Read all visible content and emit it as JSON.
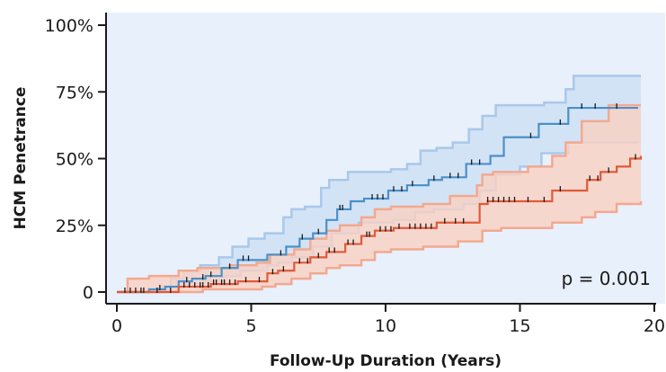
{
  "chart_data": {
    "type": "line",
    "xlabel": "Follow-Up Duration (Years)",
    "ylabel": "HCM Penetrance",
    "xlim": [
      0,
      20
    ],
    "ylim": [
      0,
      100
    ],
    "x_ticks": [
      0,
      5,
      10,
      15,
      20
    ],
    "x_tick_labels": [
      "0",
      "5",
      "10",
      "15",
      "20"
    ],
    "y_ticks": [
      0,
      25,
      50,
      75,
      100
    ],
    "y_tick_labels": [
      "0",
      "25%",
      "50%",
      "75%",
      "100%"
    ],
    "annotation": "p = 0.001",
    "background_color": "#e8f0fb",
    "series": [
      {
        "color": "#4a90c8",
        "band_fill": "#cfe0f5",
        "band_stroke": "#a9c8ea",
        "estimate": [
          [
            0,
            0
          ],
          [
            0.6,
            0
          ],
          [
            1.2,
            1
          ],
          [
            1.8,
            2
          ],
          [
            2.3,
            4
          ],
          [
            2.8,
            5
          ],
          [
            3.3,
            6
          ],
          [
            3.9,
            9
          ],
          [
            4.5,
            12
          ],
          [
            5.6,
            14
          ],
          [
            6.3,
            17
          ],
          [
            6.8,
            20
          ],
          [
            7.3,
            22
          ],
          [
            7.8,
            27
          ],
          [
            8.2,
            31
          ],
          [
            8.7,
            34
          ],
          [
            9.2,
            35
          ],
          [
            10.1,
            38
          ],
          [
            10.8,
            40
          ],
          [
            11.6,
            42
          ],
          [
            12.1,
            43
          ],
          [
            13.0,
            48
          ],
          [
            13.9,
            51
          ],
          [
            14.4,
            58
          ],
          [
            15.7,
            63
          ],
          [
            16.8,
            69
          ],
          [
            19.4,
            69
          ]
        ],
        "upper": [
          [
            0,
            0
          ],
          [
            1.0,
            0
          ],
          [
            1.6,
            2
          ],
          [
            2.0,
            5
          ],
          [
            2.5,
            8
          ],
          [
            3.1,
            10
          ],
          [
            3.8,
            13
          ],
          [
            4.3,
            17
          ],
          [
            4.9,
            20
          ],
          [
            5.5,
            22
          ],
          [
            6.2,
            28
          ],
          [
            6.5,
            31
          ],
          [
            7.0,
            32
          ],
          [
            7.6,
            39
          ],
          [
            7.9,
            42
          ],
          [
            8.6,
            45
          ],
          [
            10.2,
            46
          ],
          [
            10.8,
            48
          ],
          [
            11.3,
            53
          ],
          [
            11.9,
            54
          ],
          [
            12.5,
            56
          ],
          [
            13.1,
            61
          ],
          [
            13.6,
            66
          ],
          [
            14.1,
            70
          ],
          [
            15.9,
            71
          ],
          [
            16.7,
            76
          ],
          [
            17.0,
            81
          ],
          [
            19.5,
            81
          ]
        ],
        "lower": [
          [
            0,
            0
          ],
          [
            0.8,
            0
          ],
          [
            1.6,
            1
          ],
          [
            2.0,
            2
          ],
          [
            2.6,
            3
          ],
          [
            3.2,
            4
          ],
          [
            4.0,
            6
          ],
          [
            4.6,
            8
          ],
          [
            5.6,
            10
          ],
          [
            6.0,
            11
          ],
          [
            6.5,
            13
          ],
          [
            7.3,
            17
          ],
          [
            8.0,
            22
          ],
          [
            9.0,
            26
          ],
          [
            10.3,
            27
          ],
          [
            11.1,
            30
          ],
          [
            11.8,
            31
          ],
          [
            12.9,
            33
          ],
          [
            13.5,
            38
          ],
          [
            14.1,
            44
          ],
          [
            15.0,
            47
          ],
          [
            15.8,
            52
          ],
          [
            16.8,
            56
          ],
          [
            19.4,
            56
          ]
        ]
      },
      {
        "color": "#e05a3a",
        "band_fill": "#f9d1c3",
        "band_stroke": "#f2a98f",
        "estimate": [
          [
            0,
            0
          ],
          [
            0.3,
            0
          ],
          [
            1.3,
            0
          ],
          [
            2.3,
            2
          ],
          [
            3.5,
            3
          ],
          [
            4.5,
            4
          ],
          [
            5.6,
            7
          ],
          [
            6.0,
            8
          ],
          [
            6.6,
            11
          ],
          [
            7.2,
            13
          ],
          [
            7.8,
            15
          ],
          [
            8.5,
            18
          ],
          [
            9.1,
            21
          ],
          [
            9.6,
            23
          ],
          [
            10.3,
            24
          ],
          [
            11.9,
            26
          ],
          [
            13.5,
            33
          ],
          [
            13.8,
            34
          ],
          [
            16.2,
            38
          ],
          [
            17.5,
            42
          ],
          [
            18.0,
            45
          ],
          [
            18.6,
            47
          ],
          [
            19.1,
            50
          ],
          [
            19.5,
            51
          ]
        ],
        "upper": [
          [
            0,
            0
          ],
          [
            0.4,
            5
          ],
          [
            1.2,
            6
          ],
          [
            2.3,
            8
          ],
          [
            3.0,
            9
          ],
          [
            4.2,
            10
          ],
          [
            5.2,
            11
          ],
          [
            5.7,
            14
          ],
          [
            6.6,
            16
          ],
          [
            7.2,
            20
          ],
          [
            7.8,
            23
          ],
          [
            8.3,
            25
          ],
          [
            9.1,
            28
          ],
          [
            9.6,
            31
          ],
          [
            10.2,
            32
          ],
          [
            11.4,
            33
          ],
          [
            12.4,
            36
          ],
          [
            13.4,
            40
          ],
          [
            13.6,
            44
          ],
          [
            14.0,
            45
          ],
          [
            15.3,
            47
          ],
          [
            16.2,
            51
          ],
          [
            16.7,
            56
          ],
          [
            17.3,
            64
          ],
          [
            18.3,
            70
          ],
          [
            19.5,
            70
          ]
        ],
        "lower": [
          [
            0,
            0
          ],
          [
            1.3,
            0
          ],
          [
            2.3,
            0
          ],
          [
            3.2,
            1
          ],
          [
            4.5,
            1
          ],
          [
            5.4,
            2
          ],
          [
            5.9,
            3
          ],
          [
            6.5,
            5
          ],
          [
            7.2,
            7
          ],
          [
            7.8,
            9
          ],
          [
            8.3,
            10
          ],
          [
            9.1,
            12
          ],
          [
            9.6,
            15
          ],
          [
            10.2,
            16
          ],
          [
            11.4,
            17
          ],
          [
            12.7,
            19
          ],
          [
            13.6,
            23
          ],
          [
            14.3,
            24
          ],
          [
            16.2,
            26
          ],
          [
            17.3,
            28
          ],
          [
            17.8,
            30
          ],
          [
            18.6,
            33
          ],
          [
            19.5,
            34
          ]
        ]
      }
    ],
    "censor_marks": [
      [
        0.3,
        0
      ],
      [
        0.5,
        0
      ],
      [
        0.7,
        0
      ],
      [
        0.9,
        0
      ],
      [
        1.0,
        0
      ],
      [
        1.5,
        0
      ],
      [
        2.0,
        0
      ],
      [
        2.5,
        2
      ],
      [
        2.7,
        2
      ],
      [
        2.9,
        2
      ],
      [
        3.1,
        2
      ],
      [
        3.2,
        2
      ],
      [
        3.4,
        2
      ],
      [
        3.6,
        3
      ],
      [
        3.7,
        3
      ],
      [
        3.9,
        3
      ],
      [
        4.0,
        3
      ],
      [
        4.2,
        3
      ],
      [
        4.4,
        3
      ],
      [
        4.8,
        4
      ],
      [
        5.3,
        4
      ],
      [
        5.8,
        7
      ],
      [
        6.2,
        8
      ],
      [
        6.8,
        11
      ],
      [
        7.1,
        11
      ],
      [
        7.5,
        13
      ],
      [
        7.9,
        15
      ],
      [
        8.1,
        15
      ],
      [
        8.6,
        18
      ],
      [
        8.8,
        18
      ],
      [
        9.3,
        21
      ],
      [
        9.4,
        21
      ],
      [
        9.8,
        23
      ],
      [
        10.0,
        23
      ],
      [
        10.2,
        23
      ],
      [
        10.5,
        24
      ],
      [
        10.9,
        24
      ],
      [
        11.1,
        24
      ],
      [
        11.3,
        24
      ],
      [
        11.5,
        24
      ],
      [
        11.7,
        24
      ],
      [
        12.2,
        26
      ],
      [
        12.6,
        26
      ],
      [
        12.9,
        26
      ],
      [
        13.8,
        34
      ],
      [
        14.0,
        34
      ],
      [
        14.2,
        34
      ],
      [
        14.4,
        34
      ],
      [
        14.6,
        34
      ],
      [
        14.8,
        34
      ],
      [
        15.3,
        34
      ],
      [
        15.9,
        34
      ],
      [
        16.5,
        38
      ],
      [
        17.6,
        42
      ],
      [
        17.9,
        42
      ],
      [
        18.3,
        45
      ],
      [
        19.3,
        50
      ],
      [
        1.6,
        1
      ],
      [
        2.6,
        4
      ],
      [
        3.2,
        5
      ],
      [
        3.5,
        6
      ],
      [
        4.2,
        9
      ],
      [
        4.7,
        12
      ],
      [
        4.9,
        12
      ],
      [
        6.1,
        14
      ],
      [
        6.9,
        20
      ],
      [
        7.5,
        22
      ],
      [
        8.3,
        31
      ],
      [
        8.4,
        31
      ],
      [
        9.5,
        35
      ],
      [
        9.7,
        35
      ],
      [
        9.9,
        35
      ],
      [
        10.3,
        38
      ],
      [
        10.6,
        38
      ],
      [
        11.0,
        40
      ],
      [
        11.8,
        42
      ],
      [
        12.4,
        43
      ],
      [
        12.7,
        43
      ],
      [
        13.2,
        48
      ],
      [
        13.5,
        48
      ],
      [
        15.4,
        58
      ],
      [
        16.5,
        63
      ],
      [
        17.3,
        69
      ],
      [
        17.8,
        69
      ],
      [
        18.6,
        69
      ]
    ]
  }
}
